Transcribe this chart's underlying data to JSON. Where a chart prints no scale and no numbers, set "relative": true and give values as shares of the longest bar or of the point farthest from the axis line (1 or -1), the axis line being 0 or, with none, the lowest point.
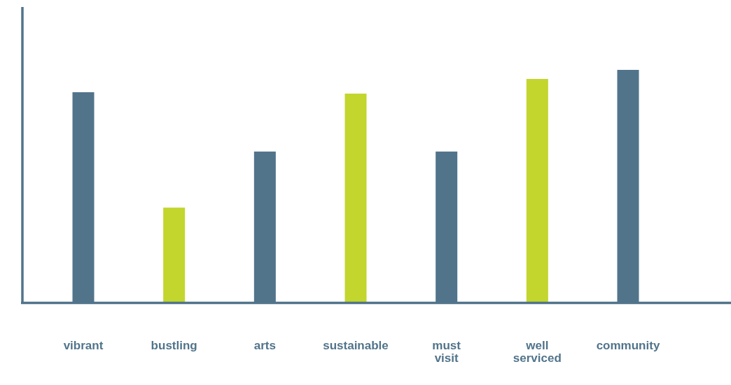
{
  "chart_data": {
    "type": "bar",
    "relative": true,
    "categories": [
      "vibrant",
      "bustling",
      "arts",
      "sustainable",
      "must visit",
      "well serviced",
      "community"
    ],
    "values": [
      0.904,
      0.408,
      0.649,
      0.898,
      0.649,
      0.961,
      1
    ],
    "colors": [
      "#51748b",
      "#c2d62e",
      "#51748b",
      "#c2d62e",
      "#51748b",
      "#c2d62e",
      "#51748b"
    ]
  }
}
